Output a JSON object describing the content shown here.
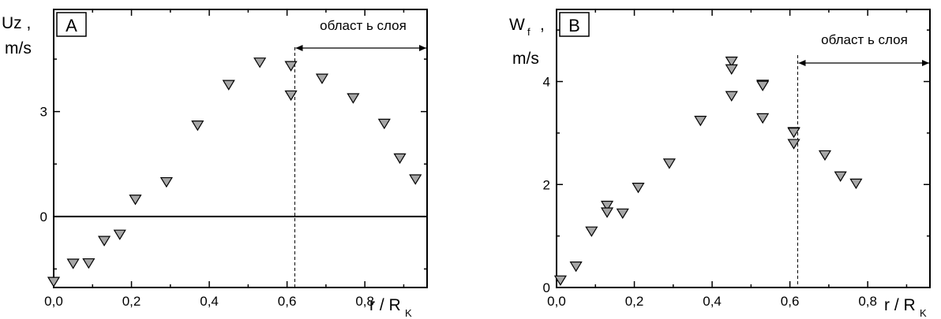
{
  "chart_data": [
    {
      "type": "scatter",
      "panel_label": "A",
      "ylabel_main": "Uz ,",
      "ylabel_unit": "m/s",
      "xlabel_main": "r / R",
      "xlabel_sub": "K",
      "annotation": "област ь слоя",
      "xlim": [
        0,
        0.96
      ],
      "ylim": [
        -2.03,
        5.92
      ],
      "x_ticks": [
        "0,0",
        "0,2",
        "0,4",
        "0,6",
        "0,8"
      ],
      "x_tick_values": [
        0,
        0.2,
        0.4,
        0.6,
        0.8
      ],
      "y_ticks": [
        "0",
        "3"
      ],
      "y_tick_values": [
        0,
        3
      ],
      "vline_x": 0.62,
      "hline_y": 0,
      "points": [
        [
          0.0,
          -1.85
        ],
        [
          0.05,
          -1.33
        ],
        [
          0.09,
          -1.32
        ],
        [
          0.13,
          -0.68
        ],
        [
          0.17,
          -0.5
        ],
        [
          0.21,
          0.5
        ],
        [
          0.29,
          1.0
        ],
        [
          0.37,
          2.62
        ],
        [
          0.45,
          3.78
        ],
        [
          0.53,
          4.42
        ],
        [
          0.61,
          4.32
        ],
        [
          0.61,
          3.48
        ],
        [
          0.69,
          3.96
        ],
        [
          0.77,
          3.4
        ],
        [
          0.85,
          2.67
        ],
        [
          0.89,
          1.68
        ],
        [
          0.93,
          1.08
        ]
      ]
    },
    {
      "type": "scatter",
      "panel_label": "B",
      "ylabel_main": "W",
      "ylabel_sub": "f",
      "ylabel_comma": ",",
      "ylabel_unit": "m/s",
      "xlabel_main": "r / R",
      "xlabel_sub": "K",
      "annotation": "област ь слоя",
      "xlim": [
        0,
        0.96
      ],
      "ylim": [
        0,
        5.4
      ],
      "x_ticks": [
        "0,0",
        "0,2",
        "0,4",
        "0,6",
        "0,8"
      ],
      "x_tick_values": [
        0,
        0.2,
        0.4,
        0.6,
        0.8
      ],
      "y_ticks": [
        "0",
        "2",
        "4"
      ],
      "y_tick_values": [
        0,
        2,
        4
      ],
      "vline_x": 0.62,
      "points": [
        [
          0.01,
          0.15
        ],
        [
          0.05,
          0.42
        ],
        [
          0.09,
          1.1
        ],
        [
          0.13,
          1.6
        ],
        [
          0.13,
          1.47
        ],
        [
          0.17,
          1.45
        ],
        [
          0.21,
          1.95
        ],
        [
          0.29,
          2.42
        ],
        [
          0.37,
          3.25
        ],
        [
          0.45,
          4.4
        ],
        [
          0.45,
          4.25
        ],
        [
          0.45,
          3.73
        ],
        [
          0.53,
          3.95
        ],
        [
          0.53,
          3.93
        ],
        [
          0.53,
          3.3
        ],
        [
          0.61,
          3.03
        ],
        [
          0.61,
          3.02
        ],
        [
          0.61,
          2.8
        ],
        [
          0.69,
          2.58
        ],
        [
          0.73,
          2.17
        ],
        [
          0.77,
          2.03
        ]
      ]
    }
  ]
}
